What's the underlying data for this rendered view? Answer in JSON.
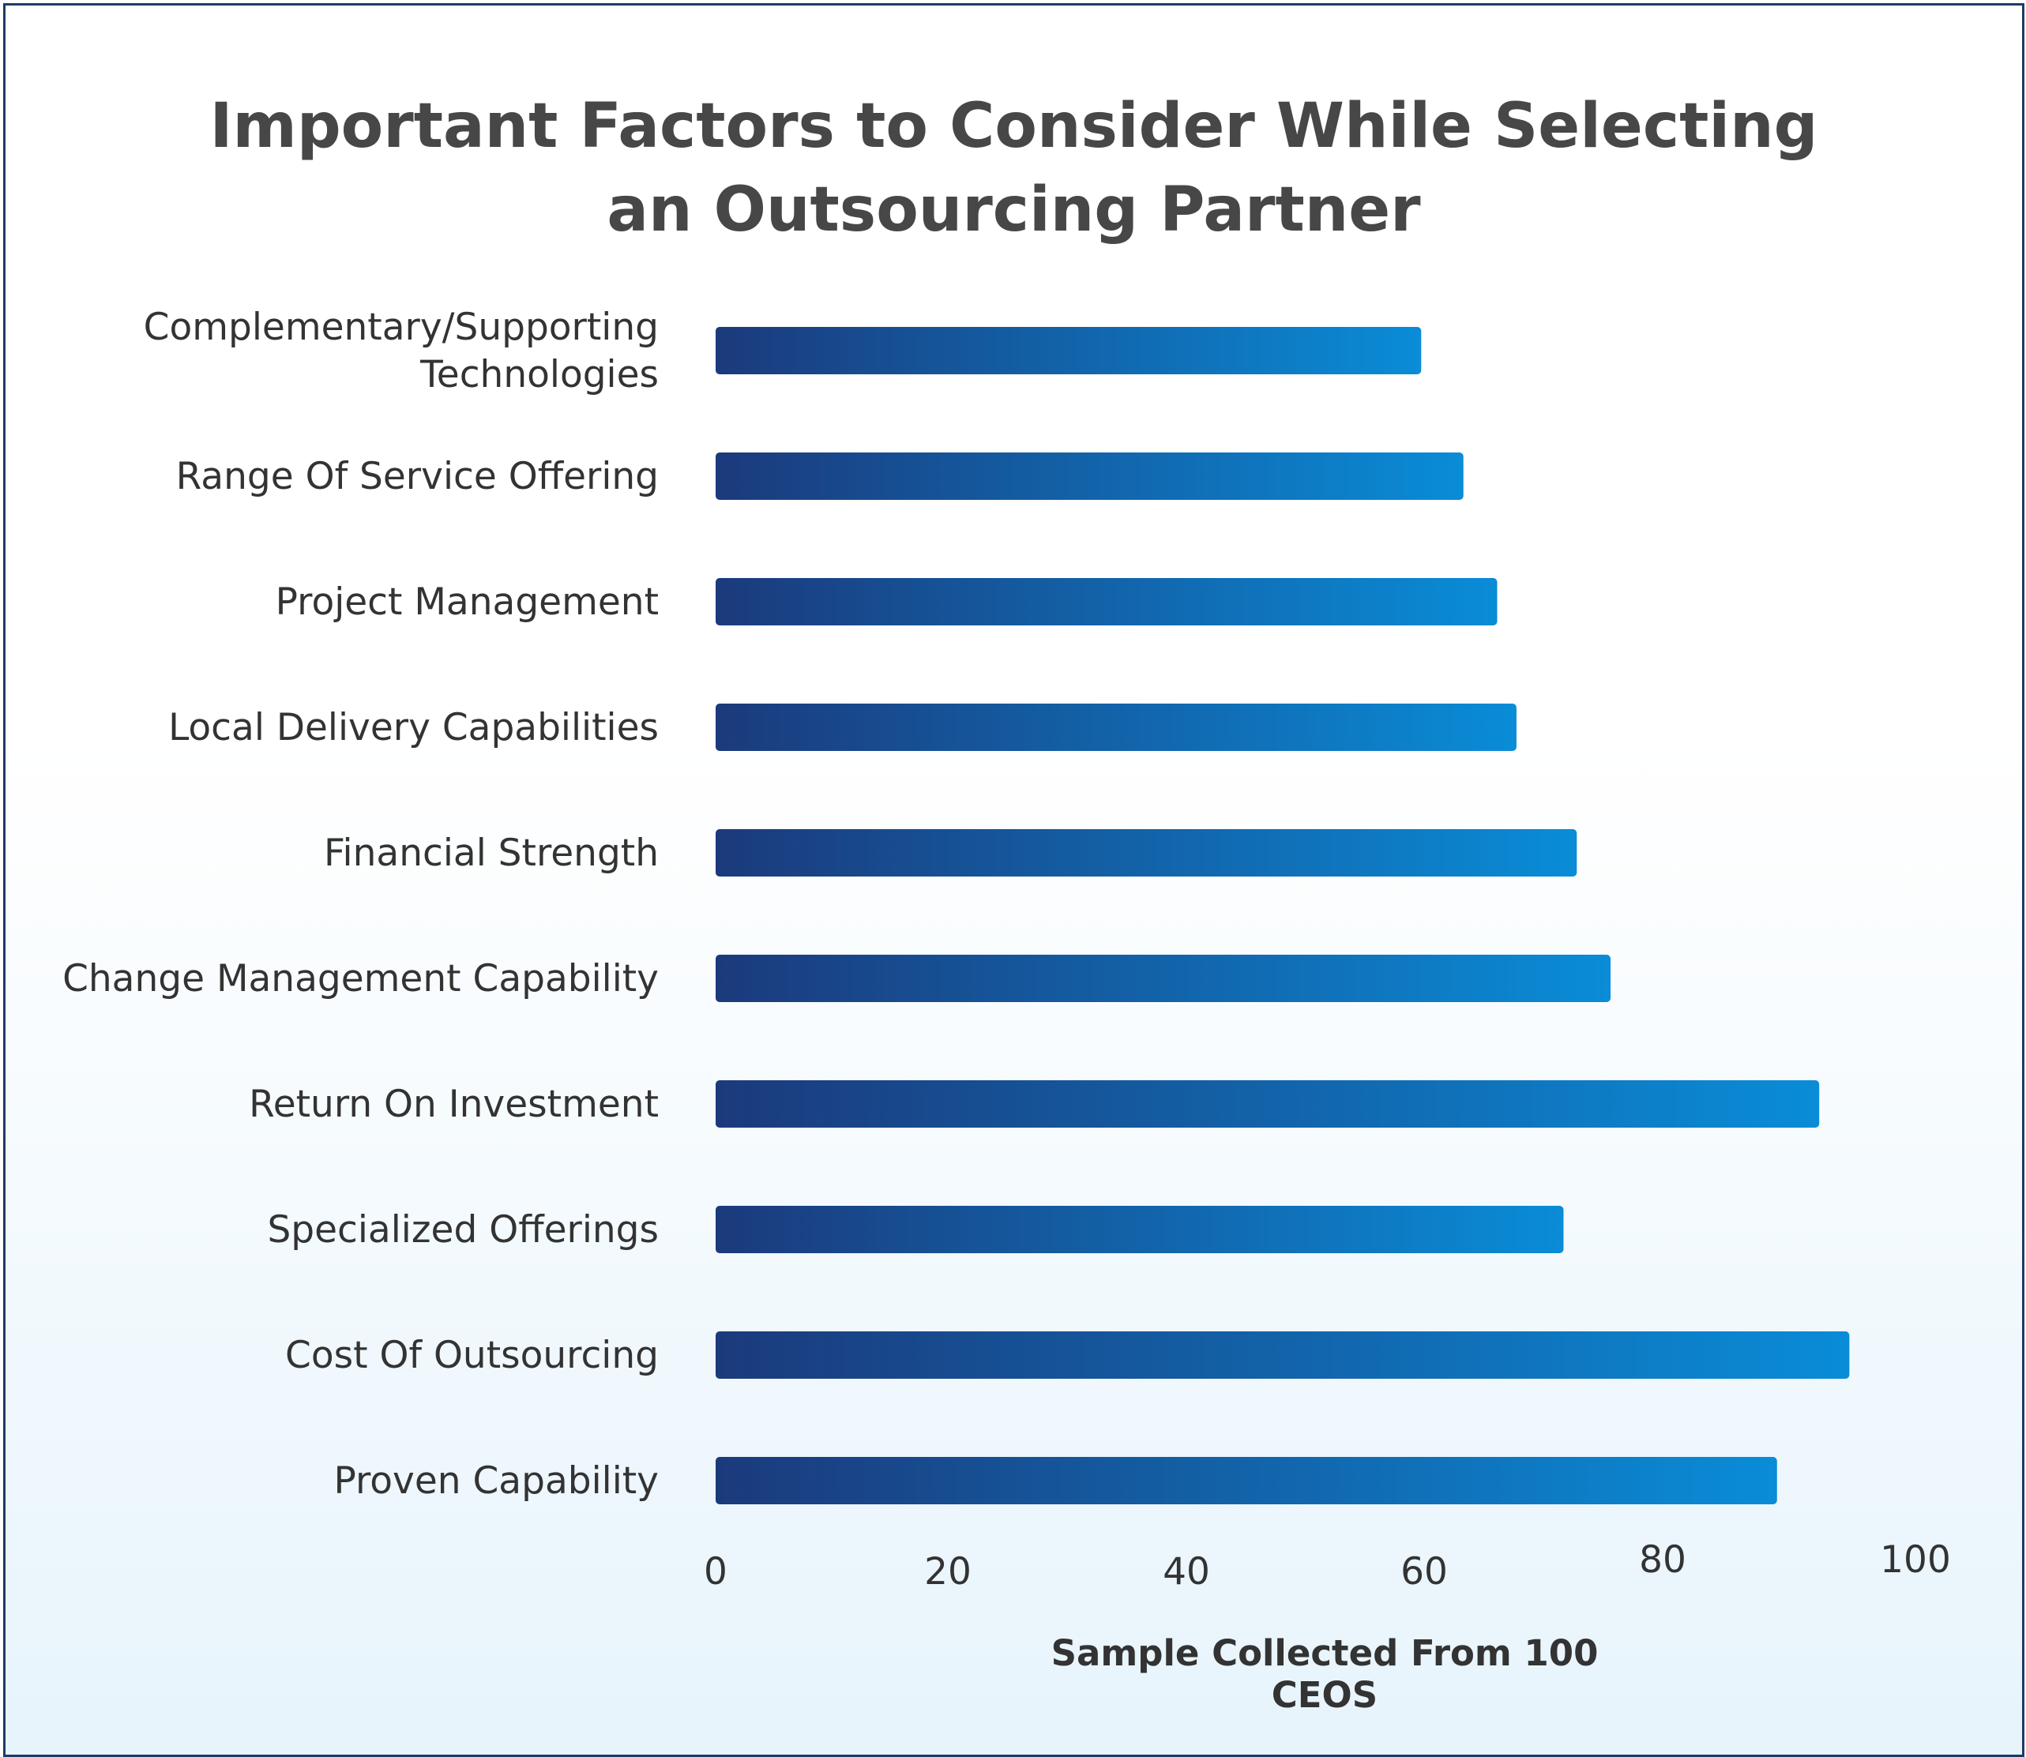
{
  "chart_data": {
    "type": "bar",
    "orientation": "horizontal",
    "title_line1": "Important Factors to Consider While Selecting",
    "title_line2": "an Outsourcing Partner",
    "xlabel": "Sample Collected From 100 CEOS",
    "ylabel": "",
    "xlim": [
      0,
      100
    ],
    "xticks": [
      "0",
      "20",
      "40",
      "60",
      "80",
      "100"
    ],
    "categories": [
      [
        "Complementary/Supporting",
        "Technologies"
      ],
      [
        "Range Of Service Offering"
      ],
      [
        "Project Management"
      ],
      [
        "Local Delivery Capabilities"
      ],
      [
        "Financial Strength"
      ],
      [
        "Change Management Capability"
      ],
      [
        "Return On Investment"
      ],
      [
        "Specialized Offerings"
      ],
      [
        "Cost Of Outsourcing"
      ],
      [
        "Proven Capability"
      ]
    ],
    "values": [
      58.5,
      62,
      64.8,
      66.4,
      71.4,
      74.2,
      91.5,
      70.3,
      94,
      88
    ],
    "grid": false,
    "legend": "none",
    "bar_colors": {
      "start": "#1b3a7c",
      "end": "#0a8cd7"
    }
  }
}
